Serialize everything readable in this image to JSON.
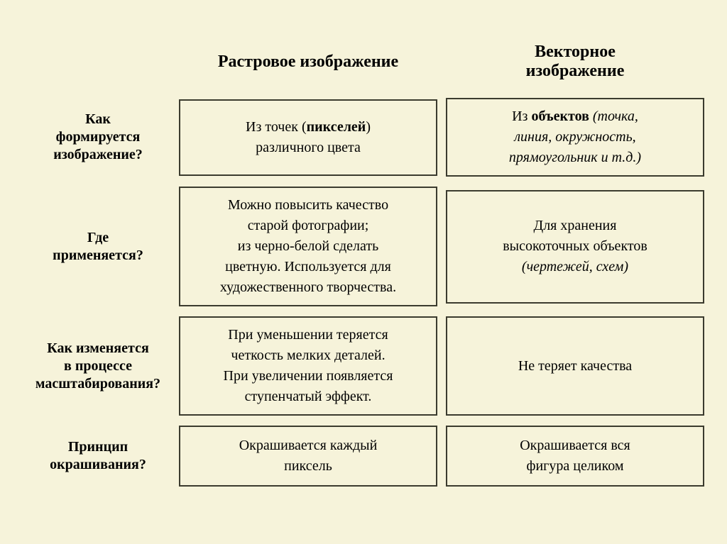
{
  "background_color": "#f6f3da",
  "border_color": "#3b3b2e",
  "text_color": "#000000",
  "font_family": "Times New Roman",
  "header_fontsize": 24,
  "label_fontsize": 20,
  "cell_fontsize": 20,
  "columns": {
    "raster": "Растровое изображение",
    "vector": "Векторное<br>изображение"
  },
  "rows": [
    {
      "label": "Как<br>формируется<br>изображение?",
      "raster": "Из точек (<b>пикселей</b>)<br>различного цвета",
      "vector": "Из <b>объектов</b> <i>(точка,<br>линия, окружность,<br>прямоугольник и т.д.)</i>",
      "min_height": 108
    },
    {
      "label": "Где<br>применяется?",
      "raster": "Можно повысить качество<br>старой фотографии;<br>из черно-белой сделать<br>цветную. Используется для<br>художественного творчества.",
      "vector": "Для хранения<br>высокоточных объектов<br><i>(чертежей, схем)</i>",
      "min_height": 160
    },
    {
      "label": "Как изменяется<br>в процессе<br>масштабирования?",
      "raster": "При уменьшении теряется<br>четкость мелких деталей.<br>При увеличении появляется<br>ступенчатый эффект.",
      "vector": "Не теряет качества",
      "min_height": 140
    },
    {
      "label": "Принцип<br>окрашивания?",
      "raster": "Окрашивается каждый<br>пиксель",
      "vector": "Окрашивается вся<br>фигура целиком",
      "min_height": 86
    }
  ]
}
